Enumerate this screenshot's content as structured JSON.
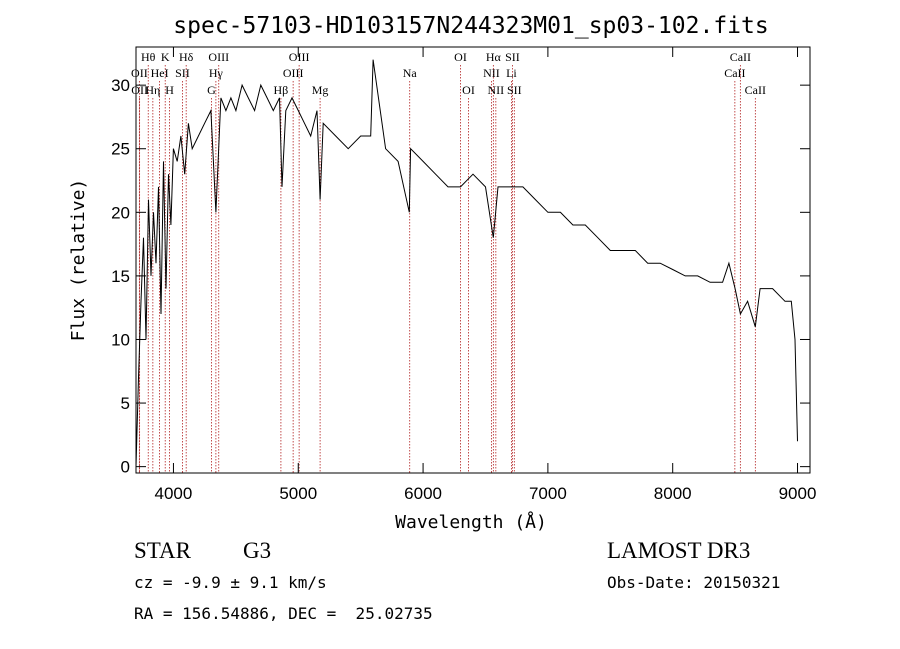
{
  "chart_data": {
    "type": "line",
    "title": "spec-57103-HD103157N244323M01_sp03-102.fits",
    "xlabel": "Wavelength (Å)",
    "ylabel": "Flux (relative)",
    "xlim": [
      3700,
      9100
    ],
    "ylim": [
      -0.5,
      33
    ],
    "xticks": [
      4000,
      5000,
      6000,
      7000,
      8000,
      9000
    ],
    "yticks": [
      0,
      5,
      10,
      15,
      20,
      25,
      30
    ],
    "grid": false,
    "series": [
      {
        "name": "flux",
        "color": "#000000",
        "x": [
          3700,
          3720,
          3740,
          3760,
          3780,
          3800,
          3820,
          3840,
          3860,
          3880,
          3900,
          3920,
          3940,
          3960,
          3980,
          4000,
          4030,
          4060,
          4090,
          4120,
          4150,
          4200,
          4250,
          4300,
          4340,
          4380,
          4420,
          4460,
          4500,
          4550,
          4600,
          4650,
          4700,
          4750,
          4800,
          4850,
          4870,
          4900,
          4950,
          5000,
          5050,
          5100,
          5150,
          5175,
          5200,
          5300,
          5400,
          5500,
          5580,
          5600,
          5700,
          5800,
          5890,
          5900,
          6000,
          6100,
          6200,
          6300,
          6400,
          6500,
          6563,
          6600,
          6700,
          6800,
          6900,
          7000,
          7100,
          7200,
          7300,
          7400,
          7500,
          7600,
          7700,
          7800,
          7900,
          8000,
          8100,
          8200,
          8300,
          8400,
          8450,
          8500,
          8542,
          8600,
          8662,
          8700,
          8800,
          8900,
          8950,
          8980,
          9000
        ],
        "y": [
          0,
          7,
          13,
          18,
          10,
          21,
          15,
          20,
          16,
          22,
          12,
          24,
          14,
          23,
          19,
          25,
          24,
          26,
          23,
          27,
          25,
          26,
          27,
          28,
          20,
          29,
          28,
          29,
          28,
          30,
          29,
          28,
          30,
          29,
          28,
          29,
          22,
          28,
          29,
          28,
          27,
          26,
          28,
          21,
          27,
          26,
          25,
          26,
          26,
          32,
          25,
          24,
          20,
          25,
          24,
          23,
          22,
          22,
          23,
          22,
          18,
          22,
          22,
          22,
          21,
          20,
          20,
          19,
          19,
          18,
          17,
          17,
          17,
          16,
          16,
          15.5,
          15,
          15,
          14.5,
          14.5,
          16,
          14,
          12,
          13,
          11,
          14,
          14,
          13,
          13,
          10,
          2
        ]
      }
    ],
    "lines": [
      {
        "name": "Hθ",
        "wl": 3798,
        "row": 1
      },
      {
        "name": "OII",
        "wl": 3727,
        "row": 2
      },
      {
        "name": "OII",
        "wl": 3729,
        "row": 3
      },
      {
        "name": "Hη",
        "wl": 3835,
        "row": 3
      },
      {
        "name": "HeI",
        "wl": 3889,
        "row": 2
      },
      {
        "name": "K",
        "wl": 3934,
        "row": 1
      },
      {
        "name": "H",
        "wl": 3969,
        "row": 3
      },
      {
        "name": "SII",
        "wl": 4072,
        "row": 2
      },
      {
        "name": "Hδ",
        "wl": 4102,
        "row": 1
      },
      {
        "name": "OIII",
        "wl": 4363,
        "row": 1
      },
      {
        "name": "Hγ",
        "wl": 4340,
        "row": 2
      },
      {
        "name": "G",
        "wl": 4305,
        "row": 3
      },
      {
        "name": "Hβ",
        "wl": 4861,
        "row": 3
      },
      {
        "name": "OIII",
        "wl": 4959,
        "row": 2
      },
      {
        "name": "OIII",
        "wl": 5007,
        "row": 1
      },
      {
        "name": "Mg",
        "wl": 5175,
        "row": 3
      },
      {
        "name": "Na",
        "wl": 5893,
        "row": 2
      },
      {
        "name": "OI",
        "wl": 6300,
        "row": 1
      },
      {
        "name": "OI",
        "wl": 6364,
        "row": 3
      },
      {
        "name": "NII",
        "wl": 6548,
        "row": 2
      },
      {
        "name": "Hα",
        "wl": 6563,
        "row": 1
      },
      {
        "name": "NII",
        "wl": 6583,
        "row": 3
      },
      {
        "name": "SII",
        "wl": 6716,
        "row": 1
      },
      {
        "name": "Li",
        "wl": 6708,
        "row": 2
      },
      {
        "name": "SII",
        "wl": 6731,
        "row": 3
      },
      {
        "name": "CaII",
        "wl": 8498,
        "row": 2
      },
      {
        "name": "CaII",
        "wl": 8542,
        "row": 1
      },
      {
        "name": "CaII",
        "wl": 8662,
        "row": 3
      }
    ]
  },
  "info": {
    "object_type": "STAR",
    "subclass": "G3",
    "survey": "LAMOST DR3",
    "cz": "cz = -9.9 ± 9.1 km/s",
    "obs_date": "Obs-Date: 20150321",
    "coords": "RA = 156.54886, DEC =  25.02735"
  },
  "colors": {
    "axis": "#000000",
    "spectrum": "#000000",
    "line_marker": "#b22222",
    "background": "#ffffff"
  }
}
